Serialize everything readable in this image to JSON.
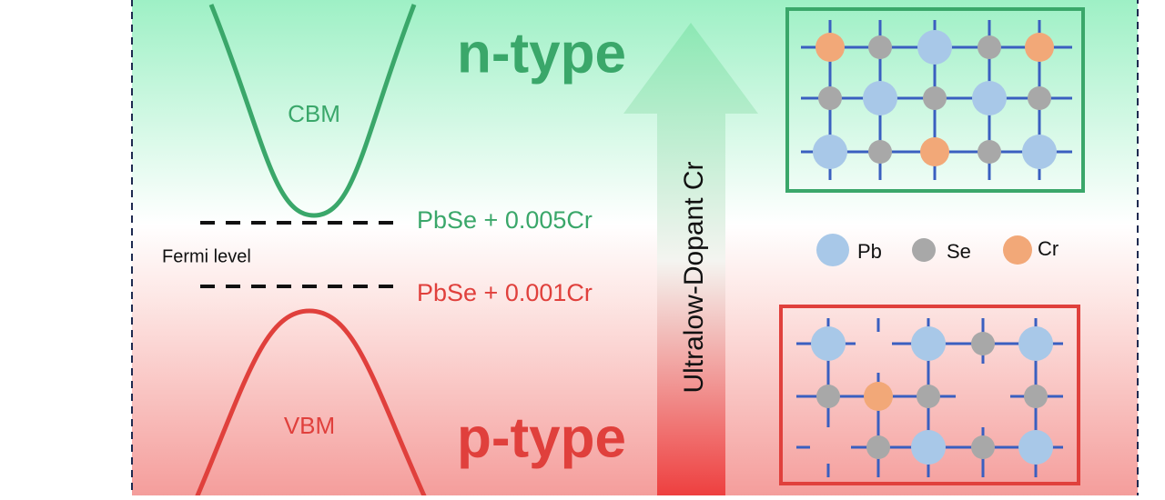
{
  "labels": {
    "n_type": "n-type",
    "p_type": "p-type",
    "cbm": "CBM",
    "vbm": "VBM",
    "fermi": "Fermi level",
    "high_dopant": "PbSe + 0.005Cr",
    "low_dopant": "PbSe + 0.001Cr",
    "arrow": "Ultralow-Dopant Cr"
  },
  "legend": [
    "Pb",
    "Se",
    "Cr"
  ]
}
